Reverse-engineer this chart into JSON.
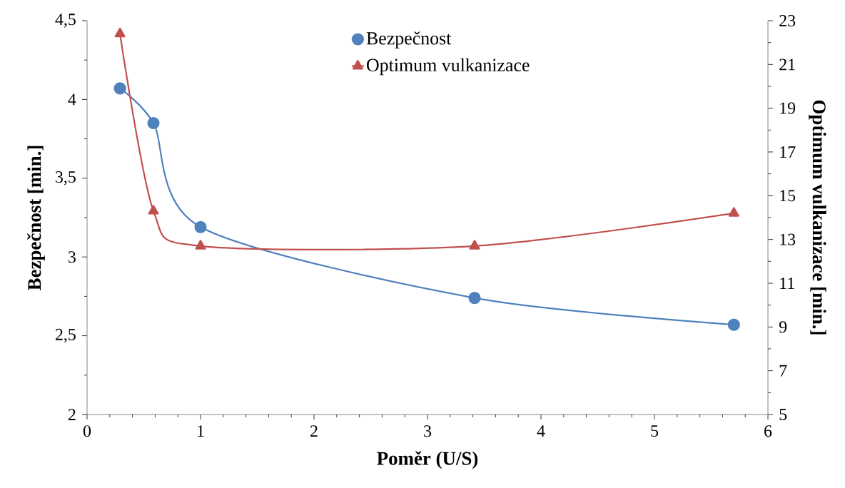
{
  "chart_data": {
    "type": "line",
    "xlabel": "Poměr (U/S)",
    "ylabel": "Bezpečnost [min.]",
    "y2label": "Optimum vulkanizace [min.]",
    "series": [
      {
        "name": "Bezpečnost",
        "color": "#4f81bd",
        "marker": "circle",
        "x": [
          0.29,
          0.585,
          1.0,
          3.415,
          5.7
        ],
        "values": [
          4.07,
          3.85,
          3.19,
          2.74,
          2.57
        ]
      },
      {
        "name": "Optimum vulkanizace",
        "color": "#c0504d",
        "marker": "triangle",
        "axis": "y2",
        "x": [
          0.29,
          0.585,
          1.0,
          3.415,
          5.7
        ],
        "values": [
          22.4,
          14.3,
          12.7,
          12.7,
          14.2
        ]
      }
    ],
    "xlim": [
      0,
      6
    ],
    "xticks": [
      0,
      1,
      2,
      3,
      4,
      5,
      6
    ],
    "ylim": [
      2,
      4.5
    ],
    "yticks": [
      2,
      {
        "value": 2.5,
        "label": "2,5"
      },
      3,
      {
        "value": 3.5,
        "label": "3,5"
      },
      4,
      {
        "value": 4.5,
        "label": "4,5"
      }
    ],
    "y2lim": [
      5,
      23
    ],
    "y2ticks": [
      5,
      7,
      9,
      11,
      13,
      15,
      17,
      19,
      21,
      23
    ],
    "grid": false,
    "legend": "top",
    "line_style": "solid"
  }
}
